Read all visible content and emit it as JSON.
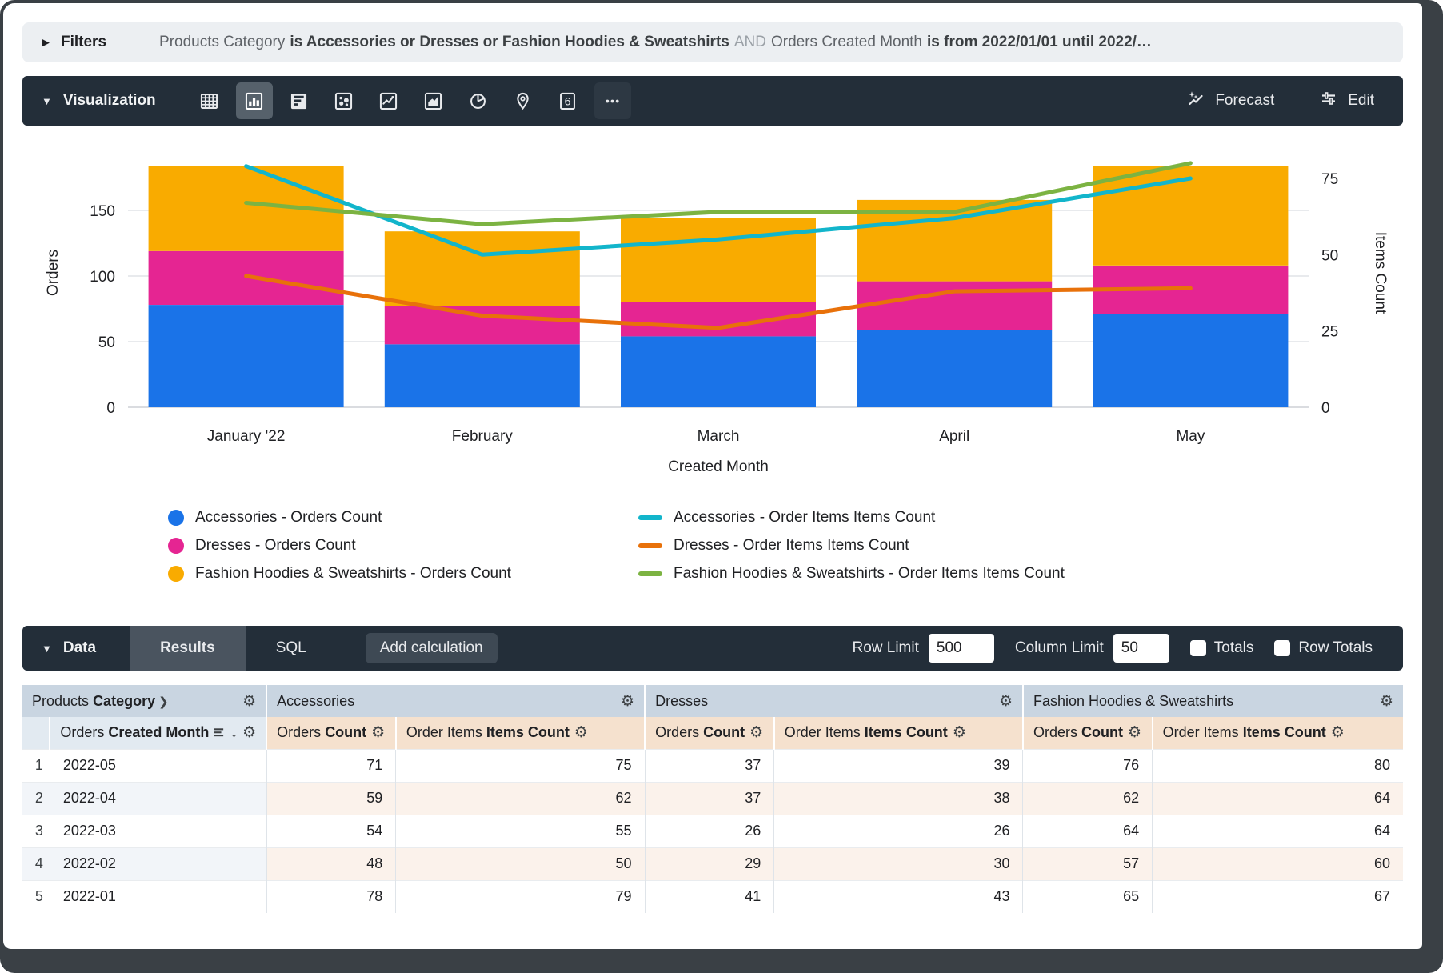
{
  "filters": {
    "label": "Filters",
    "tokens": [
      {
        "text": "Products Category",
        "style": "field"
      },
      {
        "text": "is Accessories or Dresses or Fashion Hoodies & Sweatshirts",
        "style": "value"
      },
      {
        "text": "AND",
        "style": "conjunction"
      },
      {
        "text": "Orders Created Month",
        "style": "field"
      },
      {
        "text": "is from 2022/01/01 until 2022/…",
        "style": "value"
      }
    ]
  },
  "viz": {
    "label": "Visualization",
    "icons": [
      {
        "name": "table-chart-icon",
        "selected": false
      },
      {
        "name": "column-chart-icon",
        "selected": true
      },
      {
        "name": "bar-chart-icon",
        "selected": false
      },
      {
        "name": "scatter-chart-icon",
        "selected": false
      },
      {
        "name": "line-chart-icon",
        "selected": false
      },
      {
        "name": "area-chart-icon",
        "selected": false
      },
      {
        "name": "pie-chart-icon",
        "selected": false
      },
      {
        "name": "map-chart-icon",
        "selected": false
      },
      {
        "name": "single-value-icon",
        "selected": false,
        "glyph": "6"
      },
      {
        "name": "more-options-icon",
        "selected": false,
        "boxed": true
      }
    ],
    "forecast_label": "Forecast",
    "edit_label": "Edit"
  },
  "chart_data": {
    "type": "combo (stacked bar + line, dual y-axis)",
    "categories": [
      "January '22",
      "February",
      "March",
      "April",
      "May"
    ],
    "bar_series": [
      {
        "name": "Accessories - Orders Count",
        "color": "#1A73E8",
        "values": [
          78,
          48,
          54,
          59,
          71
        ]
      },
      {
        "name": "Dresses - Orders Count",
        "color": "#E52592",
        "values": [
          41,
          29,
          26,
          37,
          37
        ]
      },
      {
        "name": "Fashion Hoodies & Sweatshirts - Orders Count",
        "color": "#F9AB00",
        "values": [
          65,
          57,
          64,
          62,
          76
        ]
      }
    ],
    "line_series": [
      {
        "name": "Accessories - Order Items Items Count",
        "color": "#12B5CB",
        "values": [
          79,
          50,
          55,
          62,
          75
        ]
      },
      {
        "name": "Dresses - Order Items Items Count",
        "color": "#E8710A",
        "values": [
          43,
          30,
          26,
          38,
          39
        ]
      },
      {
        "name": "Fashion Hoodies & Sweatshirts - Order Items Items Count",
        "color": "#7CB342",
        "values": [
          67,
          60,
          64,
          64,
          80
        ]
      }
    ],
    "left_axis": {
      "title": "Orders",
      "ticks": [
        0,
        50,
        100,
        150
      ],
      "max": 206
    },
    "right_axis": {
      "title": "Items Count",
      "ticks": [
        0,
        25,
        50,
        75
      ],
      "max": 88.6
    },
    "x_title": "Created Month",
    "grid": true,
    "legend_position": "bottom"
  },
  "data_bar": {
    "label": "Data",
    "results_tab": "Results",
    "sql_tab": "SQL",
    "add_calculation": "Add calculation",
    "row_limit_label": "Row Limit",
    "row_limit_value": "500",
    "column_limit_label": "Column Limit",
    "column_limit_value": "50",
    "totals_label": "Totals",
    "row_totals_label": "Row Totals",
    "totals_checked": false,
    "row_totals_checked": false
  },
  "table": {
    "dimension_group": {
      "plain": "Products",
      "bold": "Category",
      "chevron": "❯"
    },
    "dimension_column": {
      "plain": "Orders",
      "bold": "Created Month",
      "sort_arrow": "↓"
    },
    "groups": [
      "Accessories",
      "Dresses",
      "Fashion Hoodies & Sweatshirts"
    ],
    "measure_columns": [
      {
        "plain": "Orders",
        "bold": "Count"
      },
      {
        "plain": "Order Items",
        "bold": "Items Count"
      }
    ],
    "rows": [
      {
        "n": "1",
        "month": "2022-05",
        "values": [
          71,
          75,
          37,
          39,
          76,
          80
        ]
      },
      {
        "n": "2",
        "month": "2022-04",
        "values": [
          59,
          62,
          37,
          38,
          62,
          64
        ]
      },
      {
        "n": "3",
        "month": "2022-03",
        "values": [
          54,
          55,
          26,
          26,
          64,
          64
        ]
      },
      {
        "n": "4",
        "month": "2022-02",
        "values": [
          48,
          50,
          29,
          30,
          57,
          60
        ]
      },
      {
        "n": "5",
        "month": "2022-01",
        "values": [
          78,
          79,
          41,
          43,
          65,
          67
        ]
      }
    ]
  }
}
